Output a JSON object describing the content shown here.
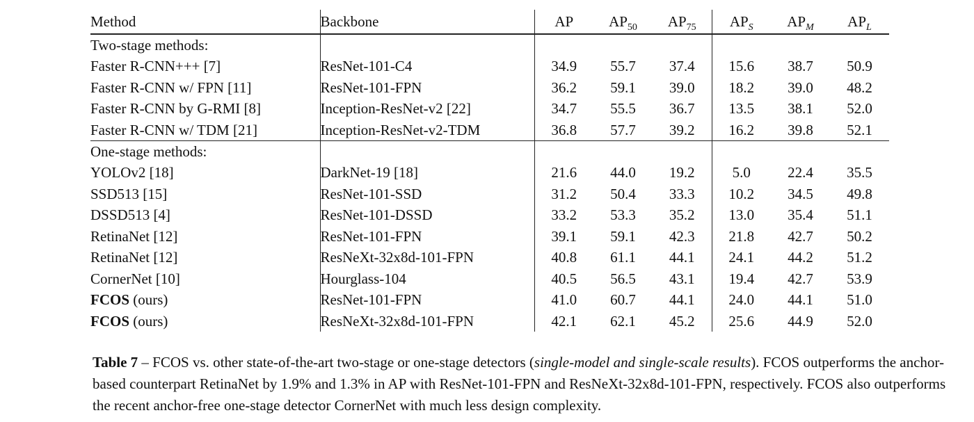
{
  "table": {
    "headers": {
      "method": "Method",
      "backbone": "Backbone",
      "ap": "AP",
      "ap50_base": "AP",
      "ap50_sub": "50",
      "ap75_base": "AP",
      "ap75_sub": "75",
      "aps_base": "AP",
      "aps_sub": "S",
      "apm_base": "AP",
      "apm_sub": "M",
      "apl_base": "AP",
      "apl_sub": "L"
    },
    "group_two_stage": "Two-stage methods:",
    "group_one_stage": "One-stage methods:",
    "two_stage": [
      {
        "method": "Faster R-CNN+++ [7]",
        "backbone": "ResNet-101-C4",
        "ap": "34.9",
        "ap50": "55.7",
        "ap75": "37.4",
        "aps": "15.6",
        "apm": "38.7",
        "apl": "50.9"
      },
      {
        "method": "Faster R-CNN w/ FPN [11]",
        "backbone": "ResNet-101-FPN",
        "ap": "36.2",
        "ap50": "59.1",
        "ap75": "39.0",
        "aps": "18.2",
        "apm": "39.0",
        "apl": "48.2"
      },
      {
        "method": "Faster R-CNN by G-RMI [8]",
        "backbone": "Inception-ResNet-v2 [22]",
        "ap": "34.7",
        "ap50": "55.5",
        "ap75": "36.7",
        "aps": "13.5",
        "apm": "38.1",
        "apl": "52.0"
      },
      {
        "method": "Faster R-CNN w/ TDM [21]",
        "backbone": "Inception-ResNet-v2-TDM",
        "ap": "36.8",
        "ap50": "57.7",
        "ap75": "39.2",
        "aps": "16.2",
        "apm": "39.8",
        "apl": "52.1"
      }
    ],
    "one_stage": [
      {
        "method": "YOLOv2 [18]",
        "backbone": "DarkNet-19 [18]",
        "ap": "21.6",
        "ap50": "44.0",
        "ap75": "19.2",
        "aps": "5.0",
        "apm": "22.4",
        "apl": "35.5"
      },
      {
        "method": "SSD513 [15]",
        "backbone": "ResNet-101-SSD",
        "ap": "31.2",
        "ap50": "50.4",
        "ap75": "33.3",
        "aps": "10.2",
        "apm": "34.5",
        "apl": "49.8"
      },
      {
        "method": "DSSD513 [4]",
        "backbone": "ResNet-101-DSSD",
        "ap": "33.2",
        "ap50": "53.3",
        "ap75": "35.2",
        "aps": "13.0",
        "apm": "35.4",
        "apl": "51.1"
      },
      {
        "method": "RetinaNet [12]",
        "backbone": "ResNet-101-FPN",
        "ap": "39.1",
        "ap50": "59.1",
        "ap75": "42.3",
        "aps": "21.8",
        "apm": "42.7",
        "apl": "50.2"
      },
      {
        "method": "RetinaNet [12]",
        "backbone": "ResNeXt-32x8d-101-FPN",
        "ap": "40.8",
        "ap50": "61.1",
        "ap75": "44.1",
        "aps": "24.1",
        "apm": "44.2",
        "apl": "51.2"
      },
      {
        "method": "CornerNet [10]",
        "backbone": "Hourglass-104",
        "ap": "40.5",
        "ap50": "56.5",
        "ap75": "43.1",
        "aps": "19.4",
        "apm": "42.7",
        "apl": "53.9"
      },
      {
        "method_bold": "FCOS",
        "method_rest": " (ours)",
        "backbone": "ResNet-101-FPN",
        "ap": "41.0",
        "ap50": "60.7",
        "ap75": "44.1",
        "aps": "24.0",
        "apm": "44.1",
        "apl": "51.0"
      },
      {
        "method_bold": "FCOS",
        "method_rest": " (ours)",
        "backbone": "ResNeXt-32x8d-101-FPN",
        "ap": "42.1",
        "ap50": "62.1",
        "ap75": "45.2",
        "aps": "25.6",
        "apm": "44.9",
        "apl": "52.0"
      }
    ]
  },
  "caption": {
    "label": "Table 7",
    "part1": " – FCOS vs. other state-of-the-art two-stage or one-stage detectors (",
    "italic": "single-model and single-scale results",
    "part2": "). FCOS outperforms the anchor-based counterpart RetinaNet by 1.9% and 1.3% in AP with ResNet-101-FPN and ResNeXt-32x8d-101-FPN, respectively. FCOS also outperforms the recent anchor-free one-stage detector CornerNet with much less design complexity."
  }
}
